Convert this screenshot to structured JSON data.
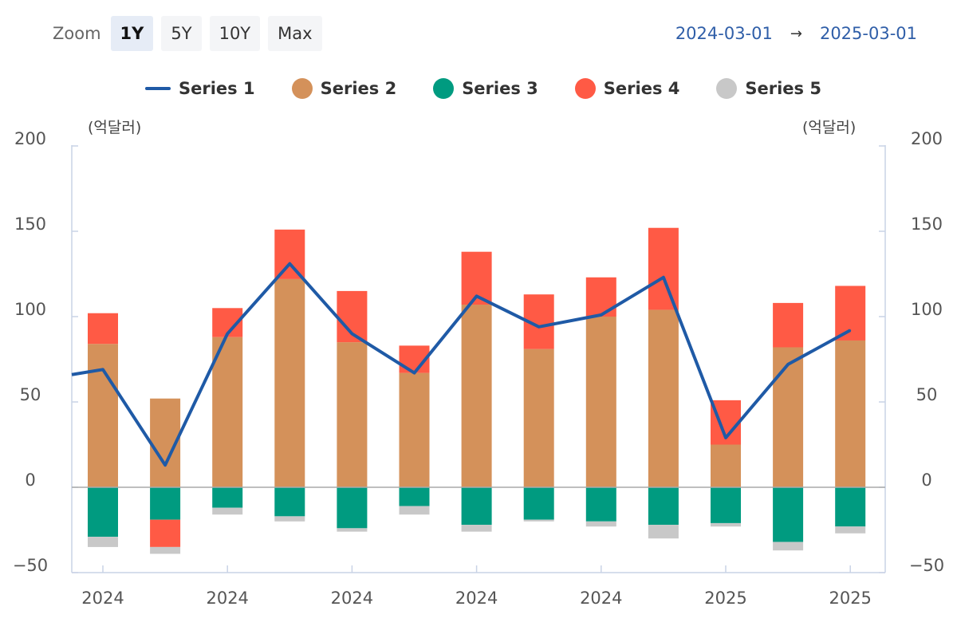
{
  "toolbar": {
    "zoom_label": "Zoom",
    "buttons": [
      {
        "label": "1Y",
        "active": true
      },
      {
        "label": "5Y",
        "active": false
      },
      {
        "label": "10Y",
        "active": false
      },
      {
        "label": "Max",
        "active": false
      }
    ]
  },
  "range": {
    "from": "2024-03-01",
    "arrow": "→",
    "to": "2025-03-01"
  },
  "units": {
    "left": "(억달러)",
    "right": "(억달러)"
  },
  "chart_data": {
    "type": "bar",
    "stacked": true,
    "categories": [
      "2024",
      "",
      "2024",
      "",
      "2024",
      "",
      "2024",
      "",
      "2024",
      "",
      "2025",
      "",
      "2025"
    ],
    "ylim": [
      -50,
      200
    ],
    "yticks": [
      -50,
      0,
      50,
      100,
      150,
      200
    ],
    "grid": false,
    "legend_position": "top",
    "series": [
      {
        "name": "Series 1",
        "kind": "line",
        "color": "#1f5aa6",
        "values": [
          69,
          13,
          90,
          131,
          90,
          67,
          112,
          94,
          101,
          123,
          29,
          72,
          92
        ]
      },
      {
        "name": "Series 2",
        "kind": "bar",
        "color": "#d4915a",
        "values": [
          84,
          52,
          88,
          122,
          85,
          67,
          107,
          81,
          100,
          104,
          25,
          82,
          86
        ]
      },
      {
        "name": "Series 3",
        "kind": "bar",
        "color": "#009b80",
        "values": [
          -29,
          -19,
          -12,
          -17,
          -24,
          -11,
          -22,
          -19,
          -20,
          -22,
          -21,
          -32,
          -23
        ]
      },
      {
        "name": "Series 4",
        "kind": "bar",
        "color": "#ff5a45",
        "values": [
          18,
          -16,
          17,
          29,
          30,
          16,
          31,
          32,
          23,
          48,
          26,
          26,
          32
        ]
      },
      {
        "name": "Series 5",
        "kind": "bar",
        "color": "#c8c8c8",
        "values": [
          -6,
          -4,
          -4,
          -3,
          -2,
          -5,
          -4,
          -1,
          -3,
          -8,
          -2,
          -5,
          -4
        ]
      }
    ]
  }
}
